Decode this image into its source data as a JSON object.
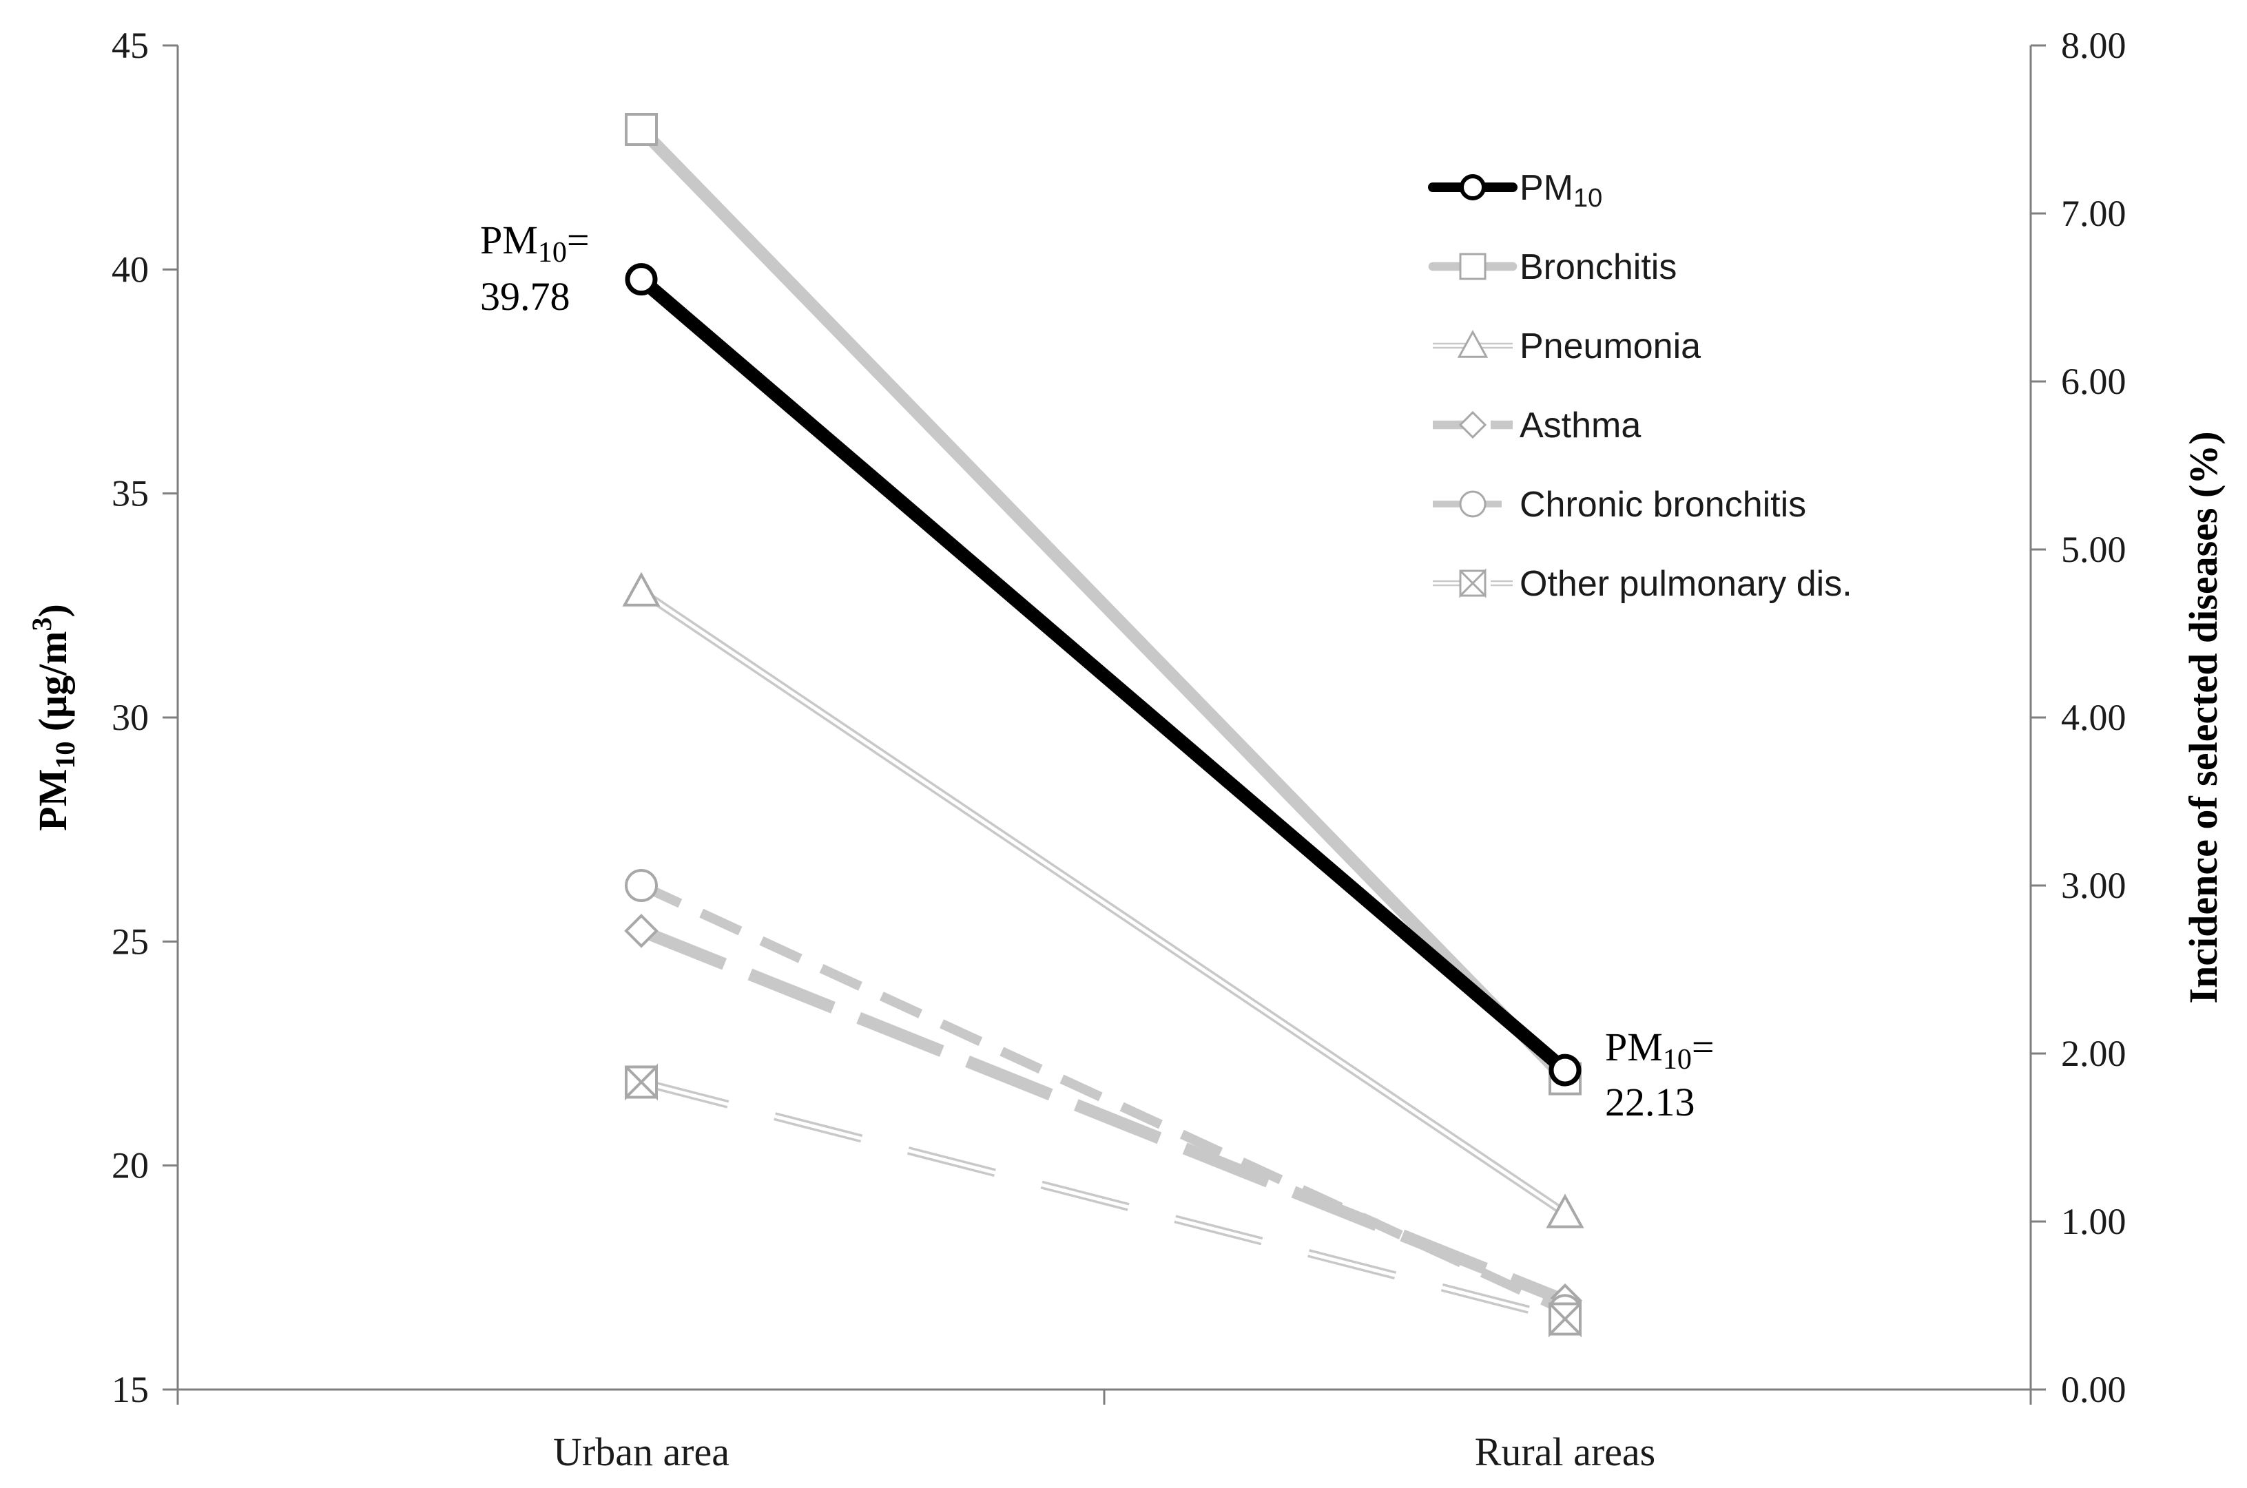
{
  "chart_data": {
    "type": "line",
    "categories": [
      "Urban area",
      "Rural areas"
    ],
    "y_left": {
      "label_main": "PM",
      "label_sub": "10",
      "label_unit": " (μg/m",
      "label_sup": "3",
      "label_close": ")",
      "min": 15,
      "max": 45,
      "ticks": [
        15,
        20,
        25,
        30,
        35,
        40,
        45
      ]
    },
    "y_right": {
      "label": "Incidence of selected diseases (%)",
      "min": 0,
      "max": 8,
      "ticks": [
        "0.00",
        "1.00",
        "2.00",
        "3.00",
        "4.00",
        "5.00",
        "6.00",
        "7.00",
        "8.00"
      ]
    },
    "series": [
      {
        "name": "Bronchitis",
        "name_sub": "",
        "axis": "right",
        "values": [
          7.5,
          1.85
        ],
        "color": "#c8c8c8",
        "style": "solid-thick",
        "marker": "square"
      },
      {
        "name": "Pneumonia",
        "name_sub": "",
        "axis": "right",
        "values": [
          4.75,
          1.05
        ],
        "color": "#c8c8c8",
        "style": "double",
        "marker": "triangle"
      },
      {
        "name": "Asthma",
        "name_sub": "",
        "axis": "right",
        "values": [
          2.73,
          0.53
        ],
        "color": "#c8c8c8",
        "style": "long-dash",
        "marker": "diamond"
      },
      {
        "name": "Chronic bronchitis",
        "name_sub": "",
        "axis": "right",
        "values": [
          3.0,
          0.47
        ],
        "color": "#c8c8c8",
        "style": "dash",
        "marker": "circle"
      },
      {
        "name": "Other pulmonary dis.",
        "name_sub": "",
        "axis": "right",
        "values": [
          1.83,
          0.42
        ],
        "color": "#c8c8c8",
        "style": "double-dash",
        "marker": "bowtie"
      },
      {
        "name": "PM",
        "name_sub": "10",
        "axis": "left",
        "values": [
          39.78,
          22.13
        ],
        "color": "#000000",
        "style": "solid-black",
        "marker": "circle"
      }
    ],
    "annotations": [
      {
        "prefix": "PM",
        "sub": "10",
        "suffix": "=",
        "value": "39.78"
      },
      {
        "prefix": "PM",
        "sub": "10",
        "suffix": "=",
        "value": "22.13"
      }
    ],
    "legend_position": "top-right",
    "grid": false
  }
}
